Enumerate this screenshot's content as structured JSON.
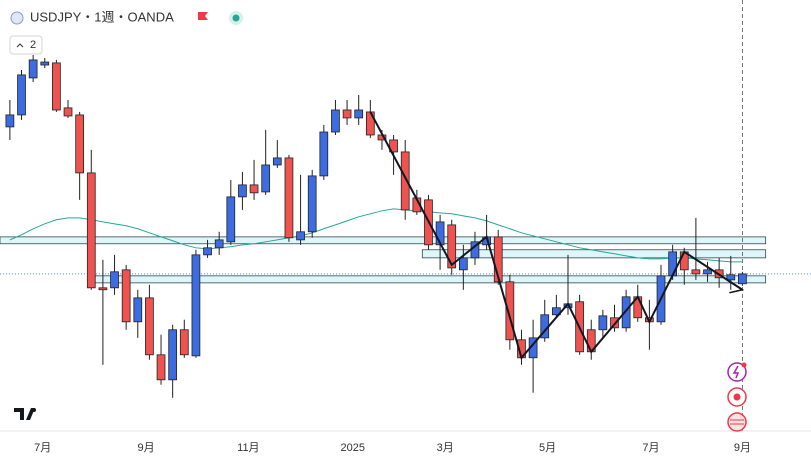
{
  "chart_data": {
    "type": "candlestick",
    "title": "USDJPY・1週・OANDA",
    "indicator_count": "2",
    "x": [
      0,
      1,
      2,
      3,
      4,
      5,
      6,
      7,
      8,
      9,
      10,
      11,
      12,
      13,
      14,
      15,
      16,
      17,
      18,
      19,
      20,
      21,
      22,
      23,
      24,
      25,
      26,
      27,
      28,
      29,
      30,
      31,
      32,
      33,
      34,
      35,
      36,
      37,
      38,
      39,
      40,
      41,
      42,
      43,
      44,
      45,
      46,
      47,
      48,
      49,
      50,
      51,
      52,
      53,
      54,
      55,
      56,
      57,
      58,
      59,
      60,
      61,
      62,
      63
    ],
    "xlim": [
      -0.85,
      68.9
    ],
    "xticks": [
      {
        "value": 2.82,
        "label": "7月"
      },
      {
        "value": 11.71,
        "label": "9月"
      },
      {
        "value": 20.51,
        "label": "11月"
      },
      {
        "value": 29.49,
        "label": "2025"
      },
      {
        "value": 37.44,
        "label": "3月"
      },
      {
        "value": 46.24,
        "label": "5月"
      },
      {
        "value": 55.13,
        "label": "7月"
      },
      {
        "value": 63.0,
        "label": "9月"
      }
    ],
    "ylim": [
      137.1,
      165.8
    ],
    "up_color": "#3d6be0",
    "down_color": "#ef5350",
    "border_color": "#222222",
    "candles": {
      "open": [
        157.33,
        158.13,
        160.6,
        161.46,
        161.6,
        158.6,
        158.13,
        154.26,
        146.59,
        146.59,
        147.79,
        144.32,
        145.92,
        142.12,
        140.45,
        143.79,
        142.05,
        148.79,
        149.26,
        149.66,
        152.66,
        153.46,
        152.99,
        154.79,
        155.26,
        149.79,
        150.33,
        154.06,
        156.99,
        158.46,
        157.93,
        158.33,
        156.79,
        156.46,
        155.66,
        152.59,
        152.46,
        149.46,
        150.79,
        147.79,
        148.59,
        149.46,
        149.99,
        146.99,
        143.12,
        141.92,
        143.25,
        144.79,
        145.26,
        145.66,
        143.79,
        143.79,
        144.59,
        143.92,
        145.99,
        144.59,
        144.32,
        147.39,
        148.99,
        147.79,
        147.52,
        147.79,
        147.12,
        146.86
      ],
      "high": [
        159.13,
        161.13,
        162.13,
        161.93,
        161.8,
        159.13,
        158.33,
        155.8,
        148.46,
        148.79,
        148.12,
        146.46,
        146.79,
        143.46,
        144.12,
        144.46,
        149.13,
        149.79,
        150.33,
        153.79,
        154.33,
        155.13,
        157.13,
        156.46,
        155.46,
        154.13,
        154.46,
        157.46,
        159.13,
        159.13,
        159.46,
        159.13,
        157.13,
        156.79,
        156.46,
        153.13,
        152.79,
        151.46,
        151.13,
        149.46,
        150.33,
        151.46,
        150.46,
        147.46,
        143.79,
        144.46,
        145.79,
        146.12,
        148.79,
        146.12,
        144.46,
        145.12,
        145.46,
        146.46,
        146.79,
        145.79,
        148.12,
        149.46,
        149.26,
        151.26,
        148.32,
        148.59,
        148.72,
        147.66
      ],
      "low": [
        156.46,
        157.8,
        160.33,
        161.26,
        158.33,
        157.93,
        152.46,
        146.46,
        141.45,
        146.12,
        143.79,
        143.25,
        141.79,
        140.12,
        139.25,
        141.92,
        141.92,
        148.59,
        148.79,
        149.46,
        151.79,
        152.46,
        152.79,
        154.59,
        149.66,
        149.46,
        149.93,
        153.79,
        156.79,
        157.46,
        157.46,
        156.6,
        155.8,
        154.13,
        151.13,
        151.46,
        149.13,
        147.79,
        147.46,
        146.46,
        148.12,
        149.13,
        146.79,
        142.46,
        141.45,
        139.59,
        142.99,
        144.59,
        144.79,
        142.12,
        141.79,
        143.25,
        143.66,
        143.66,
        144.32,
        142.46,
        144.12,
        147.12,
        146.79,
        147.12,
        146.99,
        146.59,
        146.46,
        146.72
      ],
      "close": [
        158.13,
        160.8,
        161.8,
        161.66,
        158.46,
        158.06,
        154.26,
        146.59,
        146.46,
        147.66,
        144.32,
        145.92,
        142.12,
        140.45,
        143.79,
        142.12,
        148.79,
        149.26,
        149.79,
        152.66,
        153.46,
        152.93,
        154.79,
        155.26,
        149.93,
        150.33,
        154.06,
        156.99,
        158.46,
        157.93,
        158.46,
        156.79,
        156.46,
        155.66,
        151.79,
        151.66,
        149.46,
        150.99,
        147.92,
        148.59,
        149.66,
        149.99,
        146.99,
        143.12,
        141.92,
        143.25,
        144.79,
        145.26,
        145.52,
        142.32,
        142.32,
        144.72,
        143.92,
        145.99,
        144.59,
        144.32,
        147.39,
        148.99,
        147.79,
        147.52,
        147.79,
        147.26,
        147.46,
        147.52
      ]
    },
    "ma": {
      "color": "#26a69a",
      "values": [
        149.79,
        150.13,
        150.53,
        150.86,
        151.13,
        151.26,
        151.26,
        151.13,
        150.99,
        150.86,
        150.73,
        150.53,
        150.26,
        149.99,
        149.73,
        149.46,
        149.26,
        149.19,
        149.26,
        149.33,
        149.46,
        149.53,
        149.66,
        149.79,
        149.93,
        150.06,
        150.26,
        150.53,
        150.79,
        151.06,
        151.33,
        151.53,
        151.73,
        151.86,
        151.79,
        151.73,
        151.66,
        151.59,
        151.53,
        151.39,
        151.26,
        151.06,
        150.79,
        150.53,
        150.26,
        150.06,
        149.86,
        149.66,
        149.46,
        149.26,
        149.13,
        148.99,
        148.86,
        148.72,
        148.59,
        148.52,
        148.52,
        148.59,
        148.59,
        148.52,
        148.46,
        148.39,
        148.32,
        148.32
      ]
    },
    "zones": [
      {
        "from": -0.85,
        "to": 65.0,
        "top": 149.99,
        "bottom": 149.53
      },
      {
        "from": 35.47,
        "to": 65.0,
        "top": 149.13,
        "bottom": 148.59
      },
      {
        "from": 6.84,
        "to": 65.0,
        "top": 147.39,
        "bottom": 146.92
      }
    ],
    "zigzag": {
      "x": [
        31,
        38,
        41,
        44,
        48,
        50,
        54,
        55,
        58,
        63
      ],
      "y": [
        158.33,
        148.12,
        149.99,
        141.92,
        145.52,
        142.32,
        145.99,
        144.32,
        148.99,
        146.46
      ]
    },
    "last_price": 147.52
  }
}
